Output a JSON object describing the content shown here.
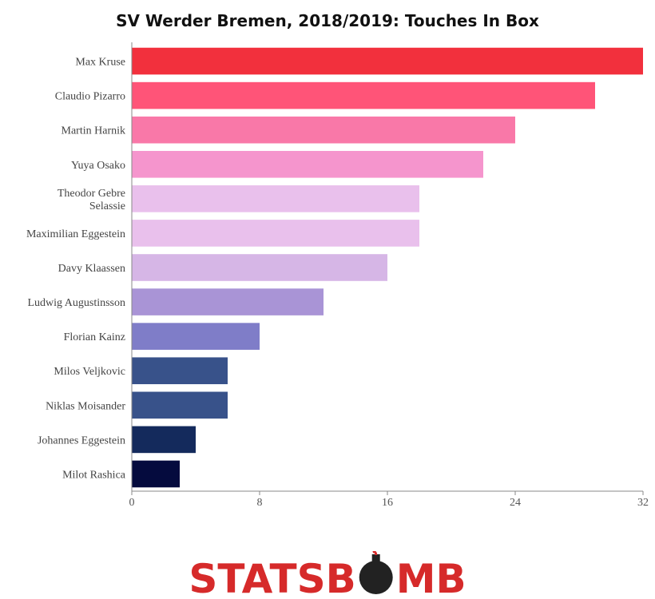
{
  "chart_data": {
    "type": "bar",
    "orientation": "horizontal",
    "title": "SV Werder Bremen, 2018/2019: Touches In Box",
    "xlabel": "",
    "ylabel": "",
    "xlim": [
      0,
      32
    ],
    "xticks": [
      0,
      8,
      16,
      24,
      32
    ],
    "grid": false,
    "categories": [
      "Max Kruse",
      "Claudio Pizarro",
      "Martin Harnik",
      "Yuya Osako",
      "Theodor Gebre Selassie",
      "Maximilian Eggestein",
      "Davy Klaassen",
      "Ludwig Augustinsson",
      "Florian Kainz",
      "Milos Veljkovic",
      "Niklas Moisander",
      "Johannes Eggestein",
      "Milot Rashica"
    ],
    "values": [
      32,
      29,
      24,
      22,
      18,
      18,
      16,
      12,
      8,
      6,
      6,
      4,
      3
    ],
    "colors": [
      "#f2303d",
      "#ff5478",
      "#f978a8",
      "#f595cd",
      "#e9c0ec",
      "#e9c0ec",
      "#d6b6e6",
      "#a994d6",
      "#7f7dc8",
      "#38528a",
      "#38528a",
      "#142a5c",
      "#050b3e"
    ]
  },
  "logo": {
    "text_before": "STATSB",
    "text_after": "MB",
    "color": "#d62a2a",
    "bomb_color": "#222222"
  }
}
